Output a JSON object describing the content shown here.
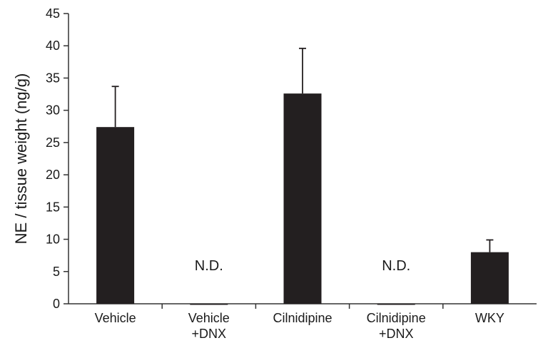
{
  "chart_data": {
    "type": "bar",
    "ylabel": "NE / tissue weight (ng/g)",
    "xlabel": "",
    "ylim": [
      0,
      45
    ],
    "yticks": [
      0,
      5,
      10,
      15,
      20,
      25,
      30,
      35,
      40,
      45
    ],
    "categories": [
      [
        "Vehicle"
      ],
      [
        "Vehicle",
        "+DNX"
      ],
      [
        "Cilnidipine"
      ],
      [
        "Cilnidipine",
        "+DNX"
      ],
      [
        "WKY"
      ]
    ],
    "values": [
      27.4,
      0,
      32.6,
      0,
      8.0
    ],
    "error_upper": [
      6.3,
      null,
      7.0,
      null,
      1.9
    ],
    "annotations": [
      "",
      "N.D.",
      "",
      "N.D.",
      ""
    ],
    "bar_color": "#231f20",
    "axis_color": "#333333",
    "grid": false,
    "legend": "none"
  }
}
